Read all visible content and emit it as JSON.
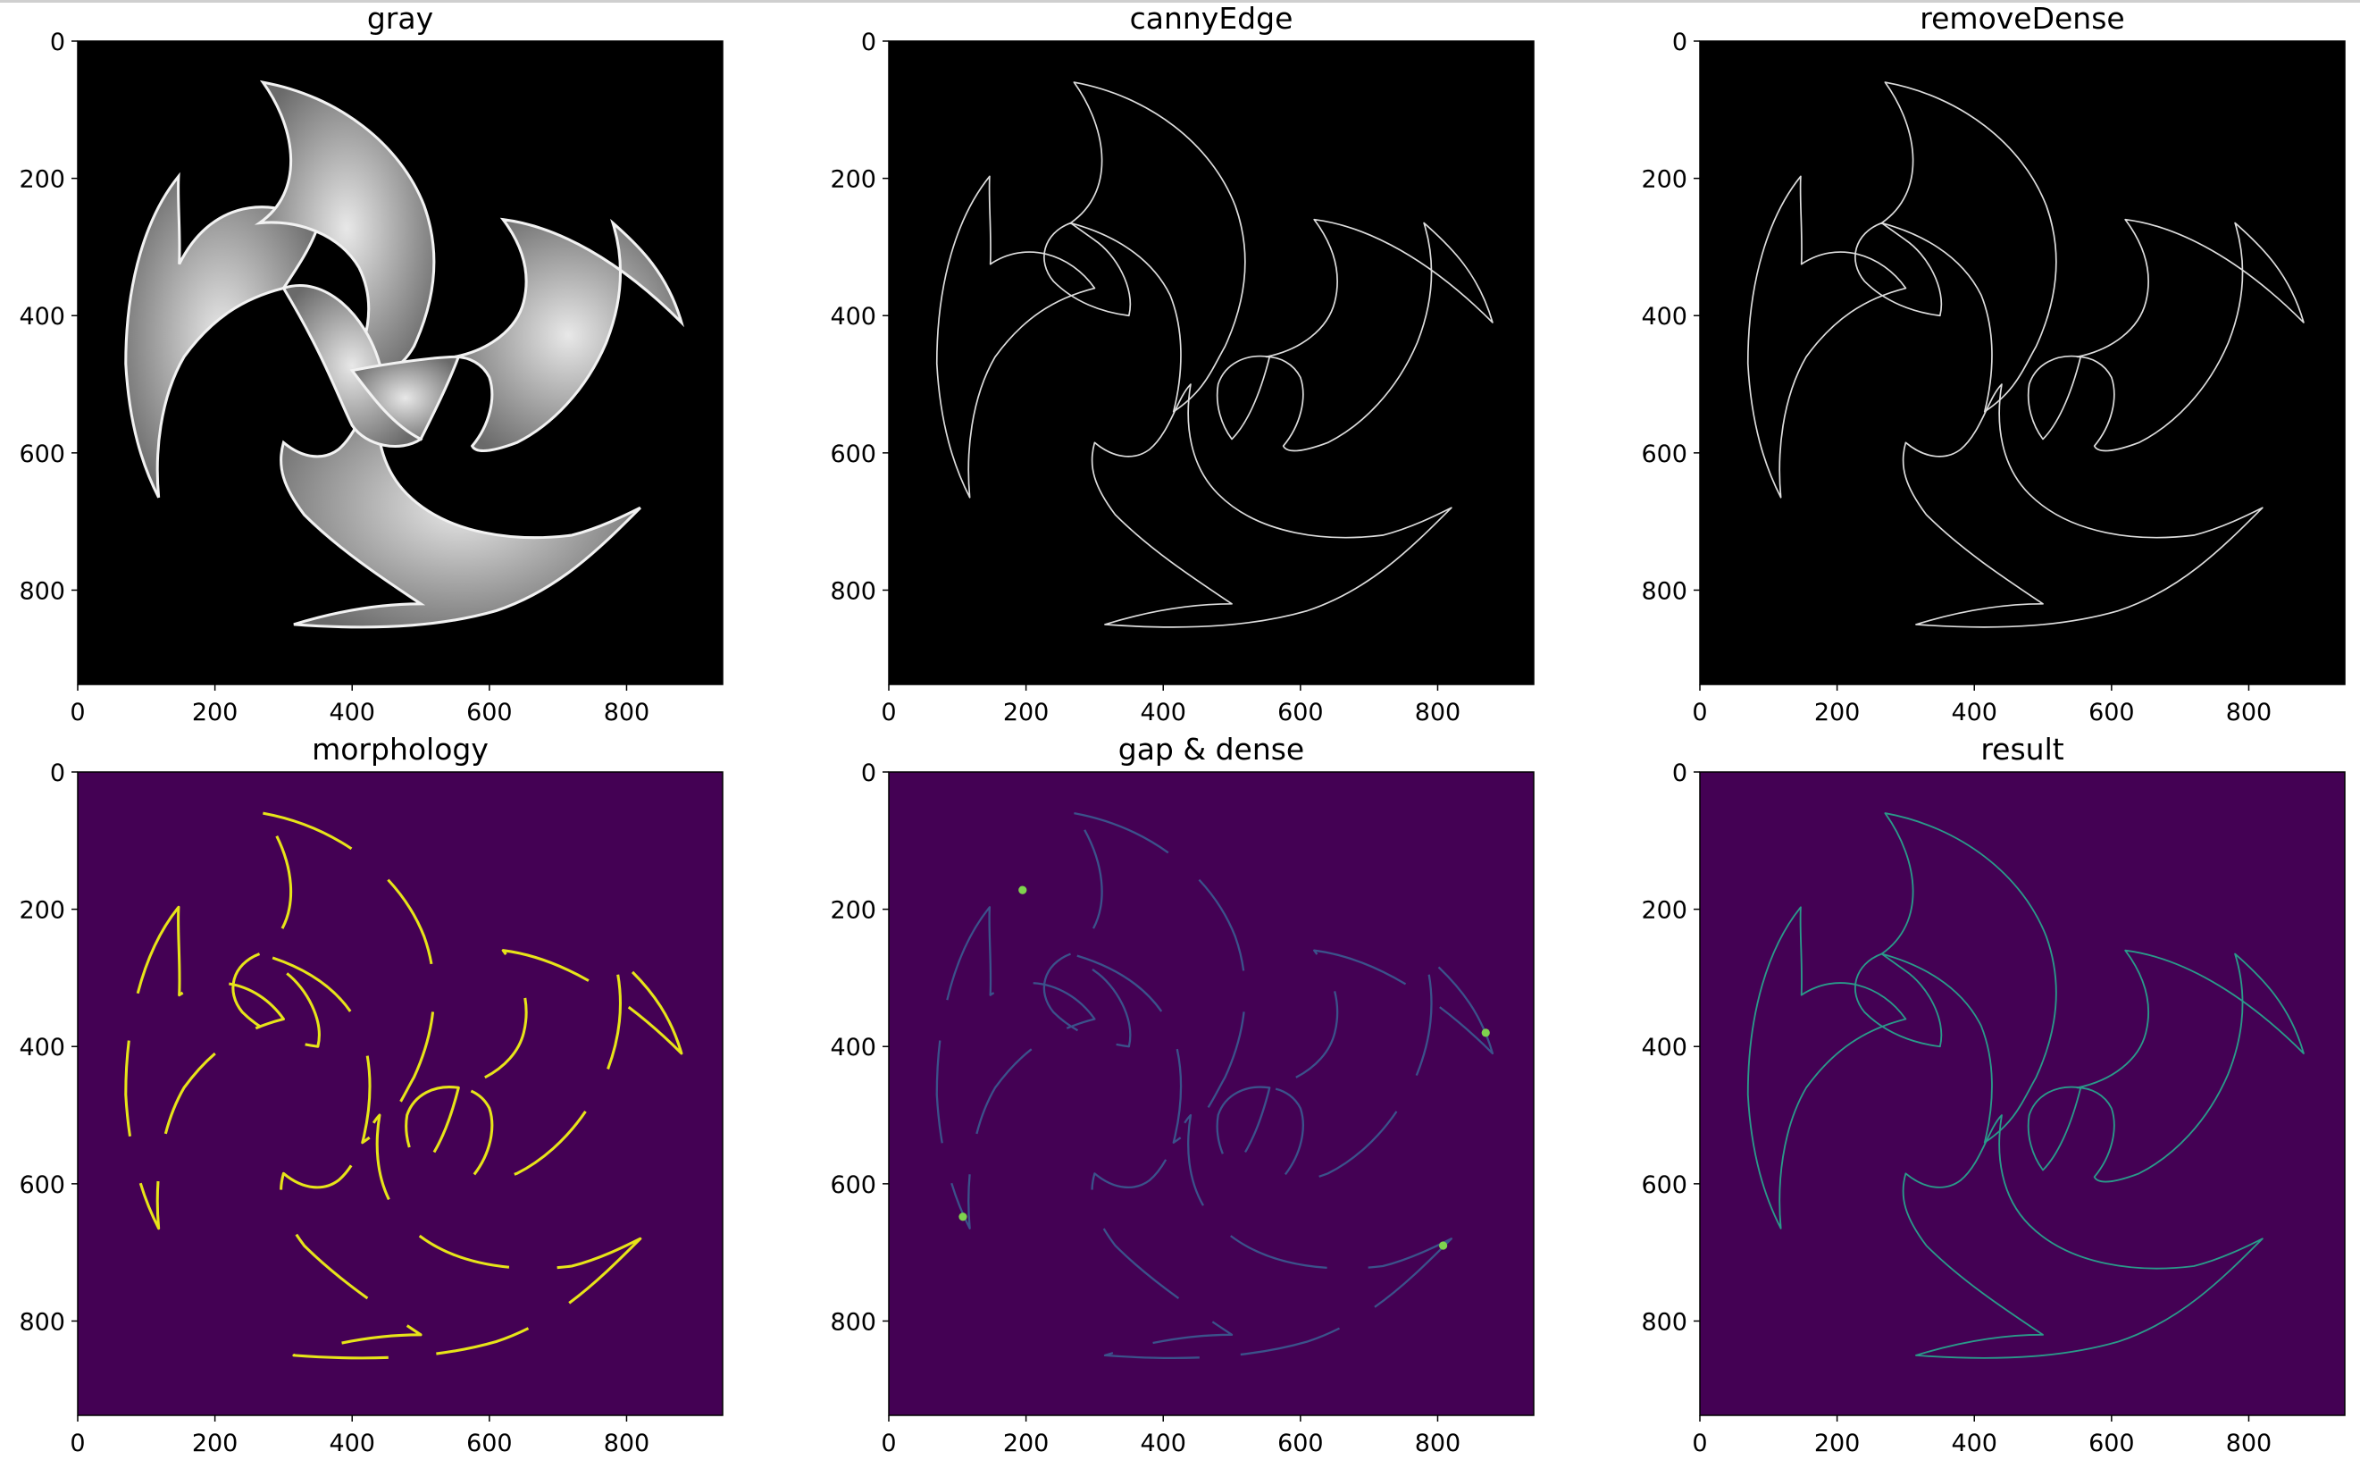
{
  "figure": {
    "panels": [
      {
        "title": "gray",
        "variant": "gray",
        "xticks": [
          "0",
          "200",
          "400",
          "600",
          "800"
        ],
        "yticks": [
          "0",
          "200",
          "400",
          "600",
          "800"
        ]
      },
      {
        "title": "cannyEdge",
        "variant": "edge",
        "xticks": [
          "0",
          "200",
          "400",
          "600",
          "800"
        ],
        "yticks": [
          "0",
          "200",
          "400",
          "600",
          "800"
        ]
      },
      {
        "title": "removeDense",
        "variant": "edge",
        "xticks": [
          "0",
          "200",
          "400",
          "600",
          "800"
        ],
        "yticks": [
          "0",
          "200",
          "400",
          "600",
          "800"
        ]
      },
      {
        "title": "morphology",
        "variant": "morph",
        "xticks": [
          "0",
          "200",
          "400",
          "600",
          "800"
        ],
        "yticks": [
          "0",
          "200",
          "400",
          "600",
          "800"
        ]
      },
      {
        "title": "gap & dense",
        "variant": "gap",
        "xticks": [
          "0",
          "200",
          "400",
          "600",
          "800"
        ],
        "yticks": [
          "0",
          "200",
          "400",
          "600",
          "800"
        ]
      },
      {
        "title": "result",
        "variant": "result",
        "xticks": [
          "0",
          "200",
          "400",
          "600",
          "800"
        ],
        "yticks": [
          "0",
          "200",
          "400",
          "600",
          "800"
        ]
      }
    ],
    "colors": {
      "black_bg": "#000000",
      "viridis_bg": "#440154",
      "edge_white": "#dddddd",
      "morph_yellow": "#e7e419",
      "gap_line": "#3b528b",
      "gap_hot": "#7fd34e",
      "result_line": "#2a9a8a",
      "gray_fill_light": "#e8e8e8",
      "gray_fill_dark": "#6a6a6a"
    }
  }
}
